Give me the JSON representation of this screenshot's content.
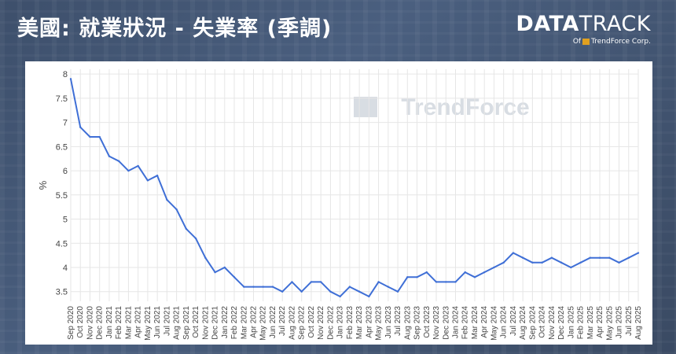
{
  "header": {
    "title": "美國: 就業狀況 - 失業率 (季調)",
    "brand_bold": "DATA",
    "brand_light": "TRACK",
    "brand_of": "Of",
    "brand_company": "TrendForce Corp."
  },
  "watermark": "TrendForce",
  "colors": {
    "line": "#3f6fd6",
    "grid": "#e6e6e6",
    "watermark": "#d8dde3"
  },
  "chart_data": {
    "type": "line",
    "title": "",
    "xlabel": "",
    "ylabel": "%",
    "ylim": [
      3.3,
      8.1
    ],
    "yticks": [
      3.5,
      4,
      4.5,
      5,
      5.5,
      6,
      6.5,
      7,
      7.5,
      8
    ],
    "grid": true,
    "categories": [
      "Sep 2020",
      "Oct 2020",
      "Nov 2020",
      "Dec 2020",
      "Jan 2021",
      "Feb 2021",
      "Mar 2021",
      "Apr 2021",
      "May 2021",
      "Jun 2021",
      "Jul 2021",
      "Aug 2021",
      "Sep 2021",
      "Oct 2021",
      "Nov 2021",
      "Dec 2021",
      "Jan 2022",
      "Feb 2022",
      "Mar 2022",
      "Apr 2022",
      "May 2022",
      "Jun 2022",
      "Jul 2022",
      "Aug 2022",
      "Sep 2022",
      "Oct 2022",
      "Nov 2022",
      "Dec 2022",
      "Jan 2023",
      "Feb 2023",
      "Mar 2023",
      "Apr 2023",
      "May 2023",
      "Jun 2023",
      "Jul 2023",
      "Aug 2023",
      "Sep 2023",
      "Oct 2023",
      "Nov 2023",
      "Dec 2023",
      "Jan 2024",
      "Feb 2024",
      "Mar 2024",
      "Apr 2024",
      "May 2024",
      "Jun 2024",
      "Jul 2024",
      "Aug 2024",
      "Sep 2024",
      "Oct 2024",
      "Nov 2024",
      "Dec 2024",
      "Jan 2025",
      "Feb 2025",
      "Mar 2025",
      "Apr 2025",
      "May 2025",
      "Jun 2025",
      "Jul 2025",
      "Aug 2025"
    ],
    "series": [
      {
        "values": [
          7.9,
          6.9,
          6.7,
          6.7,
          6.3,
          6.2,
          6.0,
          6.1,
          5.8,
          5.9,
          5.4,
          5.2,
          4.8,
          4.6,
          4.2,
          3.9,
          4.0,
          3.8,
          3.6,
          3.6,
          3.6,
          3.6,
          3.5,
          3.7,
          3.5,
          3.7,
          3.7,
          3.5,
          3.4,
          3.6,
          3.5,
          3.4,
          3.7,
          3.6,
          3.5,
          3.8,
          3.8,
          3.9,
          3.7,
          3.7,
          3.7,
          3.9,
          3.8,
          3.9,
          4.0,
          4.1,
          4.3,
          4.2,
          4.1,
          4.1,
          4.2,
          4.1,
          4.0,
          4.1,
          4.2,
          4.2,
          4.2,
          4.1,
          4.2,
          4.3
        ]
      }
    ]
  }
}
